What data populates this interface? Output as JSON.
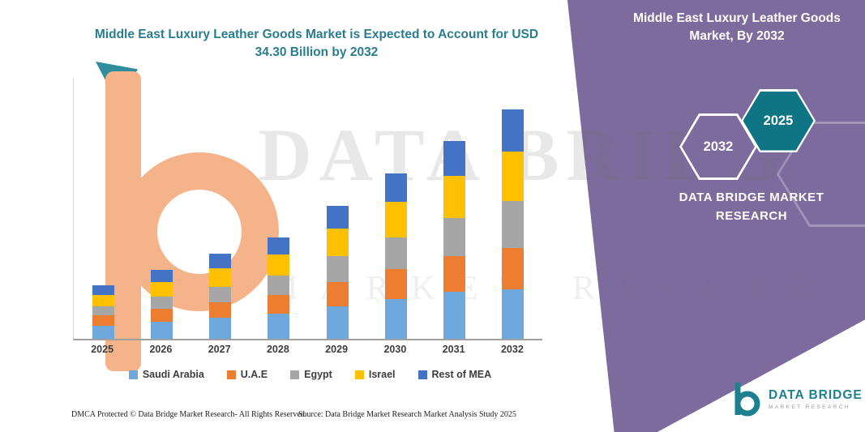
{
  "colors": {
    "panel_purple": "#7d6b9e",
    "title_teal": "#2a7d8d",
    "hexagon_teal": "#0f7585",
    "logo_teal": "#1e808f",
    "watermark_peach": "#f5b38a"
  },
  "watermark": {
    "line1": "DATA BRIDGE",
    "line2": "MARKET RESEARCH"
  },
  "panel": {
    "title": "Middle East Luxury Leather Goods Market, By 2032",
    "hex_2032": "2032",
    "hex_2025": "2025",
    "brand": "DATA BRIDGE MARKET RESEARCH"
  },
  "footer": {
    "dmca": "DMCA Protected © Data Bridge Market Research-  All Rights Reserved.",
    "source": "Source: Data Bridge Market Research  Market Analysis Study 2025"
  },
  "logo": {
    "name": "DATA BRIDGE",
    "tagline": "MARKET RESEARCH"
  },
  "chart_data": {
    "type": "bar",
    "stacked": true,
    "title": "Middle East Luxury Leather Goods Market is Expected to Account for USD 34.30 Billion by 2032",
    "categories": [
      "2025",
      "2026",
      "2027",
      "2028",
      "2029",
      "2030",
      "2031",
      "2032"
    ],
    "series": [
      {
        "name": "Saudi Arabia",
        "color": "#6fa8dc",
        "values": [
          2.0,
          2.6,
          3.2,
          3.8,
          4.9,
          6.0,
          7.0,
          7.4
        ]
      },
      {
        "name": "U.A.E",
        "color": "#ed7d31",
        "values": [
          1.5,
          1.9,
          2.3,
          2.8,
          3.6,
          4.4,
          5.3,
          6.2
        ]
      },
      {
        "name": "Egypt",
        "color": "#a6a6a6",
        "values": [
          1.4,
          1.8,
          2.3,
          2.8,
          3.8,
          4.8,
          5.8,
          7.0
        ]
      },
      {
        "name": "Israel",
        "color": "#ffc000",
        "values": [
          1.7,
          2.2,
          2.7,
          3.2,
          4.2,
          5.3,
          6.3,
          7.4
        ]
      },
      {
        "name": "Rest of MEA",
        "color": "#4472c4",
        "values": [
          1.4,
          1.8,
          2.2,
          2.6,
          3.4,
          4.2,
          5.1,
          6.3
        ]
      }
    ],
    "totals": [
      8.0,
      10.3,
      12.7,
      15.2,
      19.9,
      24.7,
      29.5,
      34.3
    ],
    "xlabel": "",
    "ylabel": "",
    "ylim": [
      0,
      39
    ],
    "grid": false,
    "legend_position": "bottom"
  }
}
